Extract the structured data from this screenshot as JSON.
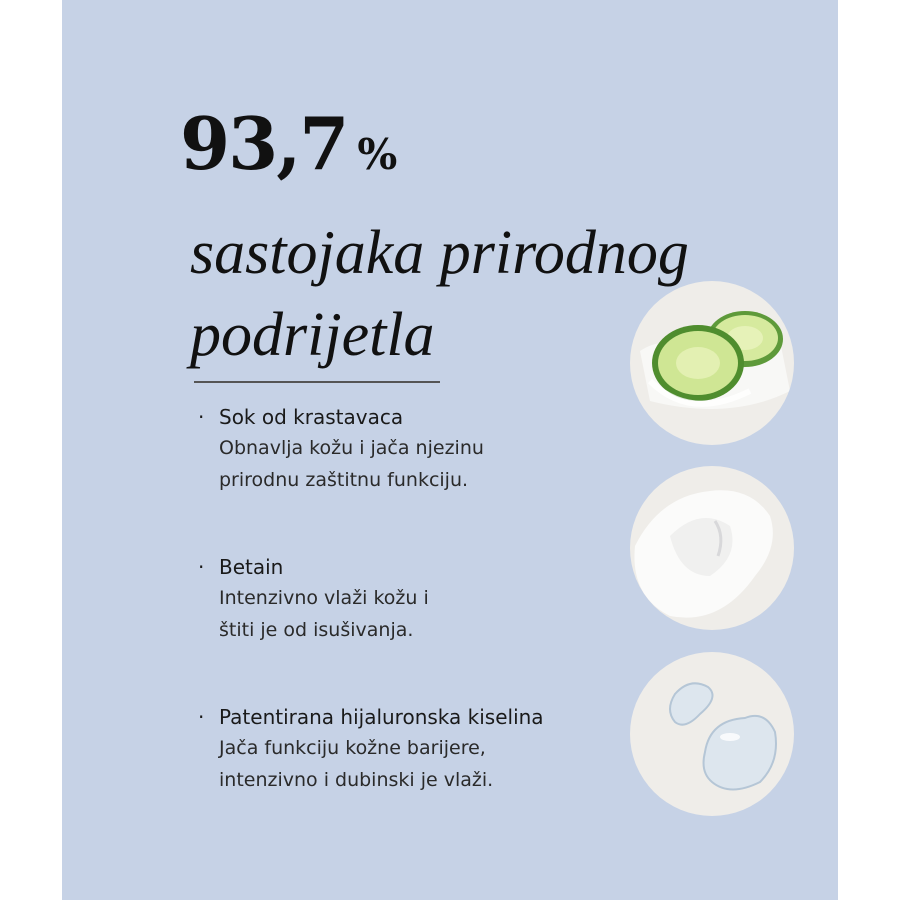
{
  "headline": {
    "number": "93,7",
    "unit": "%",
    "line1": "sastojaka prirodnog",
    "line2": "podrijetla"
  },
  "ingredients": [
    {
      "title": "Sok od krastavaca",
      "lines": [
        "Obnavlja kožu i jača njezinu",
        "prirodnu zaštitnu funkciju."
      ],
      "image": "cucumber-slices"
    },
    {
      "title": "Betain",
      "lines": [
        "Intenzivno vlaži kožu i",
        "štiti je od isušivanja."
      ],
      "image": "white-powder"
    },
    {
      "title": "Patentirana hijaluronska kiselina",
      "lines": [
        "Jača funkciju kožne barijere,",
        "intenzivno i dubinski je vlaži."
      ],
      "image": "gel-droplets"
    }
  ],
  "bullet": "·",
  "colors": {
    "background": "#c6d2e6",
    "circle": "#efede9",
    "text": "#111111"
  }
}
